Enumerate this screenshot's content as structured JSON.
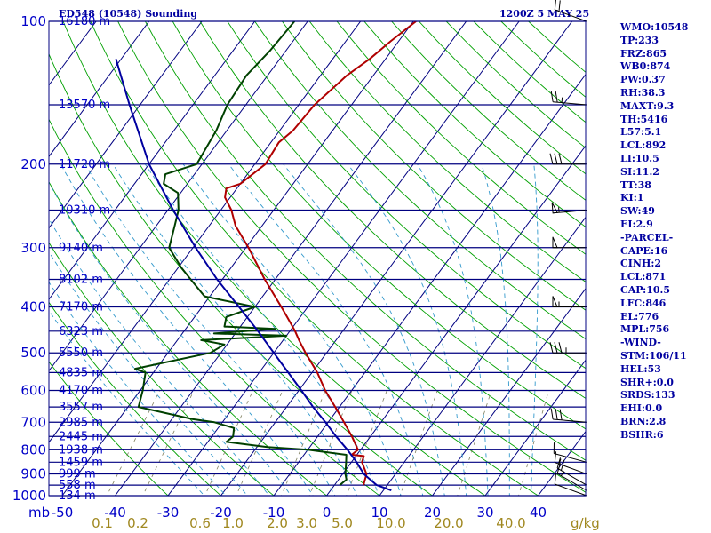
{
  "chart_data": {
    "type": "line",
    "title": "ED548 (10548) Sounding",
    "time": "1200Z  5 MAY 25",
    "pressure_axis": {
      "ticks": [
        100,
        200,
        300,
        400,
        500,
        600,
        700,
        800,
        900,
        1000
      ],
      "range_hpa": [
        100,
        1000
      ],
      "scale": "log",
      "unit": "mb"
    },
    "temperature_axis": {
      "ticks": [
        -50,
        -40,
        -30,
        -20,
        -10,
        0,
        10,
        20,
        30,
        40
      ],
      "range_c": [
        -50,
        45
      ],
      "skew": "skew-T",
      "unit": "C"
    },
    "mixing_ratio_labels": [
      "0.1",
      "0.2",
      "0.6",
      "1.0",
      "2.0",
      "3.0",
      "5.0",
      "10.0",
      "20.0",
      "40.0"
    ],
    "mixing_ratio_unit": "g/kg",
    "height_levels": [
      {
        "p": 100,
        "label": "16180 m"
      },
      {
        "p": 150,
        "label": "13570 m"
      },
      {
        "p": 200,
        "label": "11720 m"
      },
      {
        "p": 250,
        "label": "10310 m"
      },
      {
        "p": 300,
        "label": "9140 m"
      },
      {
        "p": 350,
        "label": "8102 m"
      },
      {
        "p": 400,
        "label": "7170 m"
      },
      {
        "p": 450,
        "label": "6323 m"
      },
      {
        "p": 500,
        "label": "5550 m"
      },
      {
        "p": 550,
        "label": "4835 m"
      },
      {
        "p": 600,
        "label": "4170 m"
      },
      {
        "p": 650,
        "label": "3557 m"
      },
      {
        "p": 700,
        "label": "2985 m"
      },
      {
        "p": 750,
        "label": "2445 m"
      },
      {
        "p": 800,
        "label": "1938 m"
      },
      {
        "p": 850,
        "label": "1459 m"
      },
      {
        "p": 900,
        "label": "999 m"
      },
      {
        "p": 950,
        "label": "558 m"
      },
      {
        "p": 1000,
        "label": "134 m"
      }
    ],
    "series": [
      {
        "role": "temperature",
        "color": "#b00000",
        "points": [
          [
            950,
            5.5
          ],
          [
            900,
            4.5
          ],
          [
            850,
            2.0
          ],
          [
            825,
            1.5
          ],
          [
            820,
            -1.0
          ],
          [
            800,
            -0.5
          ],
          [
            750,
            -3.5
          ],
          [
            700,
            -7.0
          ],
          [
            650,
            -10.8
          ],
          [
            600,
            -15.0
          ],
          [
            550,
            -19.0
          ],
          [
            500,
            -24.0
          ],
          [
            470,
            -27.0
          ],
          [
            450,
            -29.0
          ],
          [
            420,
            -32.5
          ],
          [
            400,
            -35.0
          ],
          [
            350,
            -42.0
          ],
          [
            300,
            -49.5
          ],
          [
            270,
            -55.0
          ],
          [
            250,
            -58.0
          ],
          [
            235,
            -61.0
          ],
          [
            225,
            -62.0
          ],
          [
            220,
            -60.0
          ],
          [
            200,
            -58.0
          ],
          [
            180,
            -58.5
          ],
          [
            170,
            -57.5
          ],
          [
            150,
            -57.0
          ],
          [
            130,
            -55.0
          ],
          [
            120,
            -53.0
          ],
          [
            110,
            -51.5
          ],
          [
            100,
            -49.5
          ]
        ]
      },
      {
        "role": "dewpoint",
        "color": "#004000",
        "points": [
          [
            950,
            1.0
          ],
          [
            925,
            1.5
          ],
          [
            900,
            0.5
          ],
          [
            850,
            -1.0
          ],
          [
            820,
            -2.0
          ],
          [
            800,
            -10.0
          ],
          [
            790,
            -18.0
          ],
          [
            770,
            -26.5
          ],
          [
            750,
            -26.0
          ],
          [
            720,
            -27.0
          ],
          [
            700,
            -31.5
          ],
          [
            690,
            -36.0
          ],
          [
            650,
            -48.0
          ],
          [
            600,
            -49.5
          ],
          [
            550,
            -51.5
          ],
          [
            540,
            -54.0
          ],
          [
            500,
            -42.0
          ],
          [
            480,
            -40.5
          ],
          [
            470,
            -45.5
          ],
          [
            460,
            -30.0
          ],
          [
            455,
            -44.0
          ],
          [
            445,
            -33.0
          ],
          [
            440,
            -43.0
          ],
          [
            420,
            -44.0
          ],
          [
            400,
            -40.0
          ],
          [
            380,
            -51.0
          ],
          [
            350,
            -56.0
          ],
          [
            330,
            -59.5
          ],
          [
            300,
            -64.5
          ],
          [
            270,
            -66.5
          ],
          [
            250,
            -68.0
          ],
          [
            230,
            -70.5
          ],
          [
            220,
            -74.5
          ],
          [
            210,
            -75.5
          ],
          [
            200,
            -71.0
          ],
          [
            170,
            -72.0
          ],
          [
            150,
            -73.5
          ],
          [
            130,
            -74.0
          ],
          [
            115,
            -73.0
          ],
          [
            100,
            -72.5
          ]
        ]
      },
      {
        "role": "parcel",
        "color": "#0000a0",
        "points": [
          [
            975,
            11.5
          ],
          [
            950,
            8.0
          ],
          [
            925,
            6.0
          ],
          [
            900,
            4.0
          ],
          [
            875,
            2.5
          ],
          [
            850,
            1.0
          ],
          [
            800,
            -2.5
          ],
          [
            750,
            -6.5
          ],
          [
            700,
            -10.5
          ],
          [
            650,
            -15.0
          ],
          [
            600,
            -19.5
          ],
          [
            550,
            -24.5
          ],
          [
            500,
            -30.0
          ],
          [
            450,
            -36.0
          ],
          [
            400,
            -43.0
          ],
          [
            350,
            -51.0
          ],
          [
            300,
            -59.5
          ],
          [
            250,
            -69.0
          ],
          [
            200,
            -80.0
          ],
          [
            150,
            -92.0
          ],
          [
            120,
            -101.0
          ]
        ]
      }
    ],
    "wind_barbs": [
      {
        "p": 1000,
        "dir": 290,
        "spd": 10
      },
      {
        "p": 975,
        "dir": 300,
        "spd": 15
      },
      {
        "p": 950,
        "dir": 300,
        "spd": 20
      },
      {
        "p": 900,
        "dir": 290,
        "spd": 15
      },
      {
        "p": 850,
        "dir": 285,
        "spd": 10
      },
      {
        "p": 700,
        "dir": 275,
        "spd": 30
      },
      {
        "p": 500,
        "dir": 270,
        "spd": 35
      },
      {
        "p": 400,
        "dir": 270,
        "spd": 55
      },
      {
        "p": 300,
        "dir": 270,
        "spd": 50
      },
      {
        "p": 250,
        "dir": 265,
        "spd": 55
      },
      {
        "p": 200,
        "dir": 270,
        "spd": 30
      },
      {
        "p": 150,
        "dir": 275,
        "spd": 25
      },
      {
        "p": 100,
        "dir": 290,
        "spd": 20
      }
    ],
    "indices": [
      "WMO:10548",
      "TP:233",
      "FRZ:865",
      "WB0:874",
      "PW:0.37",
      "RH:38.3",
      "MAXT:9.3",
      "TH:5416",
      "L57:5.1",
      "LCL:892",
      "LI:10.5",
      "SI:11.2",
      "TT:38",
      "KI:1",
      "SW:49",
      "EI:2.9",
      "-PARCEL-",
      "CAPE:16",
      "CINH:2",
      "LCL:871",
      "CAP:10.5",
      "LFC:846",
      "EL:776",
      "MPL:756",
      "-WIND-",
      "STM:106/11",
      "HEL:53",
      "SHR+:0.0",
      "SRDS:133",
      "EHI:0.0",
      "BRN:2.8",
      "BSHR:6"
    ],
    "colors": {
      "isobar": "#000080",
      "isotherm": "#000080",
      "dry_adiabat": "#00a000",
      "moist_adiabat": "#3399cc",
      "mixing_ratio": "#808060",
      "text": "#0000a0",
      "wind_label": "#a08820"
    }
  }
}
